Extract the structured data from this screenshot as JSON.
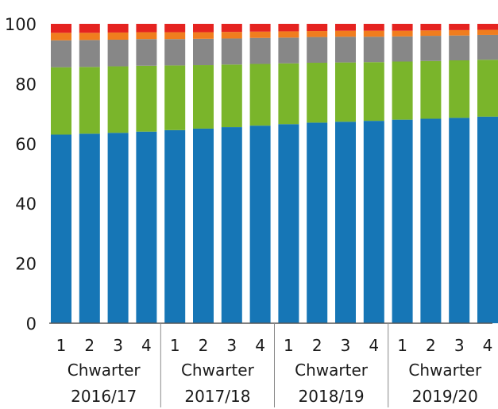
{
  "chart_data": {
    "type": "bar",
    "stacked": true,
    "ylim": [
      0,
      100
    ],
    "yticks": [
      "0",
      "20",
      "40",
      "60",
      "80",
      "100"
    ],
    "xlabel": "",
    "ylabel": "",
    "title": "",
    "legend": "none",
    "grid": false,
    "groups": [
      {
        "label": "2016/17",
        "quarter_word": "Chwarter",
        "quarters": [
          "1",
          "2",
          "3",
          "4"
        ]
      },
      {
        "label": "2017/18",
        "quarter_word": "Chwarter",
        "quarters": [
          "1",
          "2",
          "3",
          "4"
        ]
      },
      {
        "label": "2018/19",
        "quarter_word": "Chwarter",
        "quarters": [
          "1",
          "2",
          "3",
          "4"
        ]
      },
      {
        "label": "2019/20",
        "quarter_word": "Chwarter",
        "quarters": [
          "1",
          "2",
          "3",
          "4"
        ]
      }
    ],
    "categories": [
      "2016/17 Q1",
      "2016/17 Q2",
      "2016/17 Q3",
      "2016/17 Q4",
      "2017/18 Q1",
      "2017/18 Q2",
      "2017/18 Q3",
      "2017/18 Q4",
      "2018/19 Q1",
      "2018/19 Q2",
      "2018/19 Q3",
      "2018/19 Q4",
      "2019/20 Q1",
      "2019/20 Q2",
      "2019/20 Q3",
      "2019/20 Q4"
    ],
    "series": [
      {
        "color": "#1676b6",
        "values": [
          63,
          63.3,
          63.6,
          64,
          64.5,
          65,
          65.5,
          66,
          66.5,
          67,
          67.3,
          67.6,
          68,
          68.3,
          68.6,
          69
        ]
      },
      {
        "color": "#7ab52b",
        "values": [
          22.5,
          22.3,
          22.2,
          22,
          21.6,
          21.2,
          20.9,
          20.6,
          20.3,
          20,
          19.8,
          19.6,
          19.4,
          19.3,
          19.2,
          19
        ]
      },
      {
        "color": "#878787",
        "values": [
          9,
          9,
          8.9,
          8.9,
          8.8,
          8.8,
          8.7,
          8.7,
          8.6,
          8.6,
          8.6,
          8.5,
          8.4,
          8.4,
          8.3,
          8.3
        ]
      },
      {
        "color": "#f07d1e",
        "values": [
          2.5,
          2.4,
          2.4,
          2.3,
          2.3,
          2.2,
          2.2,
          2.1,
          2.1,
          2.0,
          2.0,
          2.0,
          1.9,
          1.8,
          1.8,
          1.7
        ]
      },
      {
        "color": "#e52320",
        "values": [
          3,
          3,
          2.9,
          2.8,
          2.8,
          2.8,
          2.7,
          2.6,
          2.5,
          2.4,
          2.3,
          2.3,
          2.3,
          2.2,
          2.1,
          2
        ]
      }
    ]
  }
}
